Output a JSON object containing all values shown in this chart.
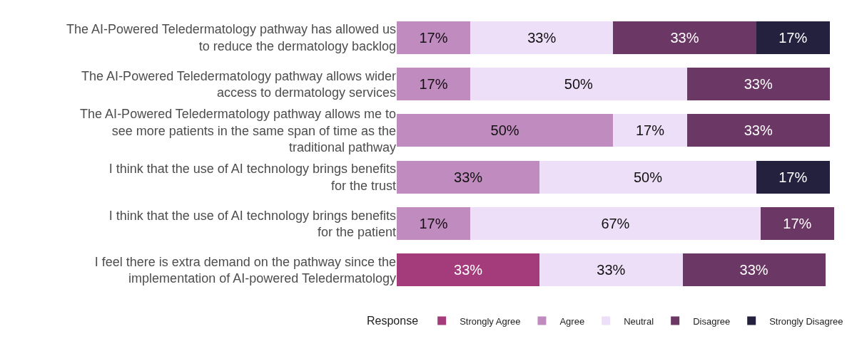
{
  "chart_data": {
    "type": "bar",
    "orientation": "horizontal",
    "stacked": true,
    "legend": "bottom",
    "legend_title": "Response",
    "tick_labels": "y",
    "categories": [
      "The AI-Powered Teledermatology pathway has allowed us\nto reduce the dermatology backlog",
      "The AI-Powered Teledermatology pathway allows wider\naccess to dermatology services",
      "The AI-Powered Teledermatology pathway allows me to\nsee more patients in the same span of time as the\ntraditional pathway",
      "I think that the use of AI technology brings benefits\nfor the trust",
      "I think that the use of AI technology brings benefits\nfor the patient",
      "I feel there is extra demand on the pathway since the\nimplementation of AI-powered Teledermatology"
    ],
    "series": [
      {
        "name": "Strongly Agree",
        "color": "#a43c7c",
        "values": [
          null,
          null,
          null,
          null,
          null,
          33
        ],
        "value_labels": [
          null,
          null,
          null,
          null,
          null,
          "33%"
        ]
      },
      {
        "name": "Agree",
        "color": "#c08bbe",
        "values": [
          17,
          17,
          50,
          33,
          17,
          null
        ],
        "value_labels": [
          "17%",
          "17%",
          "50%",
          "33%",
          "17%",
          null
        ]
      },
      {
        "name": "Neutral",
        "color": "#eedff8",
        "values": [
          33,
          50,
          17,
          50,
          67,
          33
        ],
        "value_labels": [
          "33%",
          "50%",
          "17%",
          "50%",
          "67%",
          "33%"
        ]
      },
      {
        "name": "Disagree",
        "color": "#6b3866",
        "values": [
          33,
          33,
          33,
          null,
          17,
          33
        ],
        "value_labels": [
          "33%",
          "33%",
          "33%",
          null,
          "17%",
          "33%"
        ]
      },
      {
        "name": "Strongly Disagree",
        "color": "#24213f",
        "values": [
          17,
          null,
          null,
          17,
          null,
          null
        ],
        "value_labels": [
          "17%",
          null,
          null,
          "17%",
          null,
          null
        ]
      }
    ]
  }
}
